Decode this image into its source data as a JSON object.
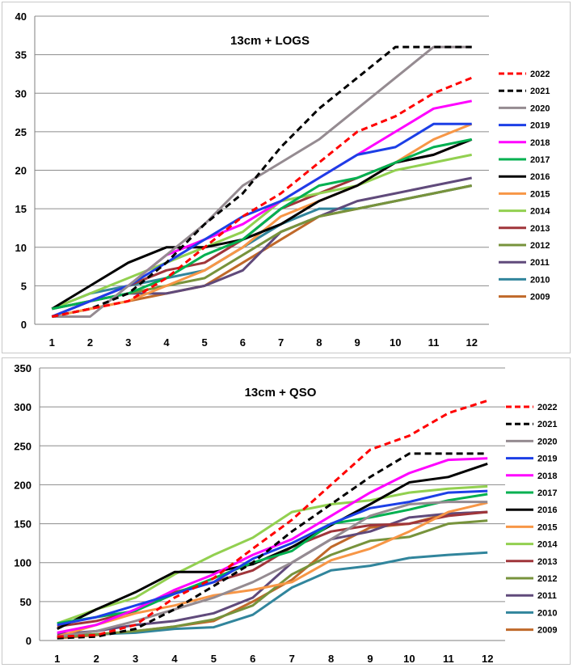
{
  "chart_data": [
    {
      "type": "line",
      "title": "13cm + LOGS",
      "xlabel": "",
      "ylabel": "",
      "x": [
        1,
        2,
        3,
        4,
        5,
        6,
        7,
        8,
        9,
        10,
        11,
        12
      ],
      "ylim": [
        0,
        40
      ],
      "yticks": [
        0,
        5,
        10,
        15,
        20,
        25,
        30,
        35,
        40
      ],
      "grid": true,
      "legend_position": "right",
      "series": [
        {
          "name": "2022",
          "color": "#ff0000",
          "dashed": true,
          "values": [
            1,
            2,
            3,
            6,
            10,
            14,
            17,
            21,
            25,
            27,
            30,
            32
          ]
        },
        {
          "name": "2021",
          "color": "#000000",
          "dashed": true,
          "values": [
            1,
            2,
            4,
            8,
            13,
            17,
            23,
            28,
            32,
            36,
            36,
            36
          ]
        },
        {
          "name": "2020",
          "color": "#958b91",
          "dashed": false,
          "values": [
            1,
            1,
            5,
            9,
            13,
            18,
            21,
            24,
            28,
            32,
            36,
            36
          ]
        },
        {
          "name": "2019",
          "color": "#1c3fe6",
          "dashed": false,
          "values": [
            1,
            3,
            5,
            8,
            11,
            14,
            16,
            19,
            22,
            23,
            26,
            26
          ]
        },
        {
          "name": "2018",
          "color": "#ff00ff",
          "dashed": false,
          "values": [
            1,
            3,
            5,
            9,
            11,
            13,
            16,
            19,
            22,
            25,
            28,
            29
          ]
        },
        {
          "name": "2017",
          "color": "#00b050",
          "dashed": false,
          "values": [
            2,
            3,
            4,
            6,
            9,
            11,
            15,
            18,
            19,
            21,
            23,
            24
          ]
        },
        {
          "name": "2016",
          "color": "#000000",
          "dashed": false,
          "values": [
            2,
            5,
            8,
            10,
            10,
            11,
            13,
            16,
            18,
            21,
            22,
            24
          ]
        },
        {
          "name": "2015",
          "color": "#f79646",
          "dashed": false,
          "values": [
            1,
            2,
            3,
            5,
            7,
            10,
            14,
            16,
            18,
            21,
            24,
            26
          ]
        },
        {
          "name": "2014",
          "color": "#92d050",
          "dashed": false,
          "values": [
            2,
            4,
            6,
            8,
            10,
            12,
            16,
            17,
            18,
            20,
            21,
            22
          ]
        },
        {
          "name": "2013",
          "color": "#a0353a",
          "dashed": false,
          "values": [
            2,
            3,
            5,
            7,
            8,
            11,
            15,
            17,
            19,
            21,
            22,
            24
          ]
        },
        {
          "name": "2012",
          "color": "#77933c",
          "dashed": false,
          "values": [
            1,
            3,
            4,
            5,
            6,
            9,
            12,
            14,
            15,
            16,
            17,
            18
          ]
        },
        {
          "name": "2011",
          "color": "#604a7b",
          "dashed": false,
          "values": [
            1,
            3,
            4,
            4,
            5,
            7,
            12,
            14,
            16,
            17,
            18,
            19
          ]
        },
        {
          "name": "2010",
          "color": "#31859c",
          "dashed": false,
          "values": [
            2,
            4,
            5,
            6,
            7,
            10,
            13,
            15,
            15,
            16,
            17,
            18
          ]
        },
        {
          "name": "2009",
          "color": "#c0692a",
          "dashed": false,
          "values": [
            1,
            2,
            3,
            4,
            5,
            8,
            11,
            14,
            15,
            16,
            17,
            18
          ]
        }
      ]
    },
    {
      "type": "line",
      "title": "13cm + QSO",
      "xlabel": "",
      "ylabel": "",
      "x": [
        1,
        2,
        3,
        4,
        5,
        6,
        7,
        8,
        9,
        10,
        11,
        12
      ],
      "ylim": [
        0,
        350
      ],
      "yticks": [
        0,
        50,
        100,
        150,
        200,
        250,
        300,
        350
      ],
      "grid": true,
      "legend_position": "right",
      "series": [
        {
          "name": "2022",
          "color": "#ff0000",
          "dashed": true,
          "values": [
            5,
            7,
            20,
            55,
            80,
            118,
            155,
            200,
            245,
            263,
            292,
            308
          ]
        },
        {
          "name": "2021",
          "color": "#000000",
          "dashed": true,
          "values": [
            3,
            5,
            15,
            40,
            70,
            100,
            140,
            175,
            210,
            240,
            240,
            240
          ]
        },
        {
          "name": "2020",
          "color": "#958b91",
          "dashed": false,
          "values": [
            5,
            12,
            25,
            40,
            55,
            75,
            100,
            130,
            160,
            175,
            178,
            178
          ]
        },
        {
          "name": "2019",
          "color": "#1c3fe6",
          "dashed": false,
          "values": [
            20,
            30,
            45,
            60,
            75,
            105,
            125,
            150,
            170,
            178,
            190,
            192
          ]
        },
        {
          "name": "2018",
          "color": "#ff00ff",
          "dashed": false,
          "values": [
            10,
            20,
            40,
            65,
            85,
            110,
            130,
            160,
            190,
            215,
            232,
            234
          ]
        },
        {
          "name": "2017",
          "color": "#00b050",
          "dashed": false,
          "values": [
            22,
            30,
            38,
            60,
            80,
            100,
            115,
            150,
            158,
            168,
            180,
            188
          ]
        },
        {
          "name": "2016",
          "color": "#000000",
          "dashed": false,
          "values": [
            15,
            40,
            62,
            88,
            88,
            98,
            120,
            148,
            175,
            203,
            210,
            227
          ]
        },
        {
          "name": "2015",
          "color": "#f79646",
          "dashed": false,
          "values": [
            5,
            20,
            35,
            45,
            58,
            65,
            75,
            103,
            118,
            140,
            165,
            177
          ]
        },
        {
          "name": "2014",
          "color": "#92d050",
          "dashed": false,
          "values": [
            22,
            40,
            55,
            85,
            110,
            132,
            165,
            175,
            180,
            190,
            195,
            198
          ]
        },
        {
          "name": "2013",
          "color": "#a0353a",
          "dashed": false,
          "values": [
            18,
            25,
            38,
            62,
            75,
            90,
            120,
            140,
            148,
            150,
            160,
            165
          ]
        },
        {
          "name": "2012",
          "color": "#77933c",
          "dashed": false,
          "values": [
            5,
            8,
            12,
            18,
            27,
            45,
            85,
            110,
            128,
            133,
            150,
            154
          ]
        },
        {
          "name": "2011",
          "color": "#604a7b",
          "dashed": false,
          "values": [
            8,
            12,
            20,
            25,
            35,
            55,
            100,
            130,
            140,
            158,
            163,
            165
          ]
        },
        {
          "name": "2010",
          "color": "#31859c",
          "dashed": false,
          "values": [
            5,
            8,
            10,
            15,
            17,
            33,
            68,
            90,
            96,
            106,
            110,
            113
          ]
        },
        {
          "name": "2009",
          "color": "#c0692a",
          "dashed": false,
          "values": [
            3,
            7,
            12,
            18,
            25,
            50,
            78,
            120,
            145,
            150,
            163,
            165
          ]
        }
      ]
    }
  ]
}
